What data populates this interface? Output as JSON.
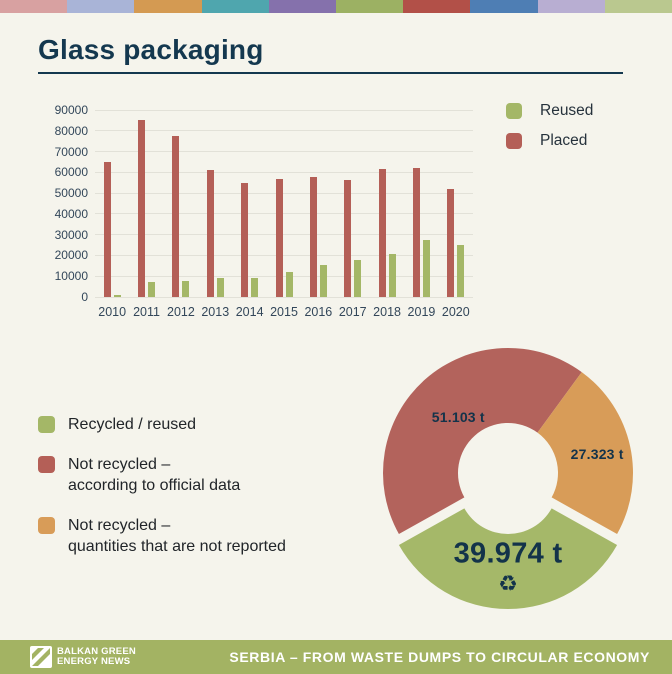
{
  "page": {
    "background": "#f5f4ec",
    "navy": "#14384f",
    "axis_text_color": "#33475a",
    "value_text_color": "#13334a"
  },
  "top_stripe": {
    "colors": [
      "#d8a1a1",
      "#a9b4d7",
      "#d49a52",
      "#4fa6ae",
      "#8571ac",
      "#9cb163",
      "#b25048",
      "#4e7eb4",
      "#b8aed2",
      "#bac88f"
    ]
  },
  "header": {
    "title": "Glass packaging"
  },
  "chart_data": [
    {
      "type": "bar",
      "title": "",
      "categories": [
        "2010",
        "2011",
        "2012",
        "2013",
        "2014",
        "2015",
        "2016",
        "2017",
        "2018",
        "2019",
        "2020"
      ],
      "series": [
        {
          "name": "Placed",
          "color": "#b45f57",
          "values": [
            65000,
            85000,
            77500,
            61000,
            55000,
            57000,
            58000,
            56500,
            61500,
            62000,
            52000
          ]
        },
        {
          "name": "Reused",
          "color": "#a4b767",
          "values": [
            1000,
            7000,
            7500,
            9000,
            9000,
            12000,
            15500,
            18000,
            20500,
            27500,
            25000
          ]
        }
      ],
      "ylim": [
        0,
        90000
      ],
      "ytick_step": 10000,
      "ytick_labels": [
        "0",
        "10000",
        "20000",
        "30000",
        "40000",
        "50000",
        "60000",
        "70000",
        "80000",
        "90000"
      ],
      "grid": true,
      "gridline_color": "#e2e1d8",
      "legend_position": "top-right"
    },
    {
      "type": "pie",
      "donut": true,
      "slices": [
        {
          "name": "Not recycled – according to official data",
          "label": "51.103 t",
          "value": 51103,
          "color": "#b3635c",
          "exploded": false
        },
        {
          "name": "Not recycled – quantities that are not reported",
          "label": "27.323 t",
          "value": 27323,
          "color": "#d89c58",
          "exploded": false
        },
        {
          "name": "Recycled / reused",
          "label": "39.974 t",
          "value": 39974,
          "color": "#a5b869",
          "exploded": true
        }
      ],
      "center_icon": "♻",
      "legend_position": "left"
    }
  ],
  "bar_legend": [
    {
      "label": "Reused",
      "color": "#a4b767"
    },
    {
      "label": "Placed",
      "color": "#b45f57"
    }
  ],
  "donut_legend": [
    {
      "color": "#a4b767",
      "label_lines": [
        "Recycled / reused"
      ]
    },
    {
      "color": "#b45f57",
      "label_lines": [
        "Not recycled –",
        "according to official data"
      ]
    },
    {
      "color": "#d89c58",
      "label_lines": [
        "Not recycled –",
        "quantities that are not reported"
      ]
    }
  ],
  "footer": {
    "background": "#a3b363",
    "logo_line1": "BALKAN GREEN",
    "logo_line2": "ENERGY NEWS",
    "campaign": "SERBIA – FROM WASTE DUMPS TO CIRCULAR ECONOMY"
  }
}
